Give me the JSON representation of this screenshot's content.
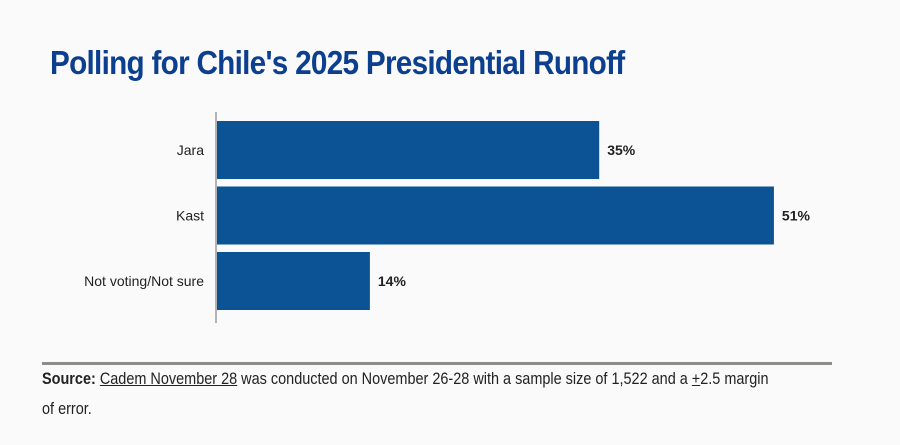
{
  "chart_data": {
    "type": "bar",
    "orientation": "horizontal",
    "title": "Polling for Chile's 2025 Presidential Runoff",
    "categories": [
      "Jara",
      "Kast",
      "Not voting/Not sure"
    ],
    "values": [
      35,
      51,
      14
    ],
    "value_labels": [
      "35%",
      "51%",
      "14%"
    ],
    "bar_color": "#0b5394",
    "grid": false,
    "xlim": [
      0,
      100
    ]
  },
  "source": {
    "label": "Source:",
    "link": "Cadem November 28",
    "text1": " was conducted on November 26-28 with a sample size of 1,522 and a ",
    "pm": "+",
    "text2": "2.5 margin of error."
  }
}
